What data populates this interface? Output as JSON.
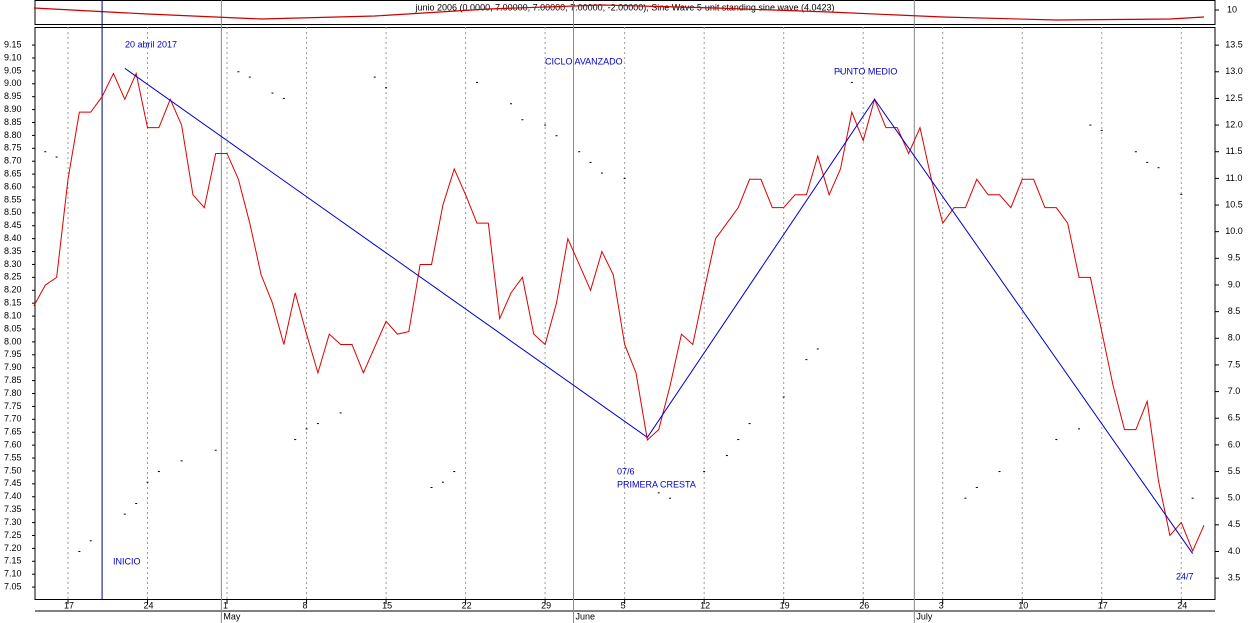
{
  "chart_data": {
    "type": "line",
    "top_panel": {
      "label": "junio 2006 (0.0000, 7.00000, 7.00000, 7.00000, -2.00000), Sine Wave 5-unit standing sine wave (4.0423)",
      "ylim": [
        7.2,
        12
      ],
      "yticks": [
        10
      ],
      "color": "#cc0000",
      "x": [
        0,
        10,
        20,
        30,
        40,
        50,
        60,
        70,
        80,
        90,
        100,
        103
      ],
      "values": [
        10.4,
        9.2,
        8.2,
        8.8,
        10.2,
        11.0,
        10.4,
        9.6,
        8.6,
        8.0,
        8.2,
        8.6
      ]
    },
    "categories": [
      null,
      null,
      null,
      "17",
      null,
      null,
      null,
      null,
      null,
      null,
      "24",
      null,
      null,
      null,
      null,
      null,
      null,
      "1",
      null,
      null,
      null,
      null,
      null,
      null,
      "8",
      null,
      null,
      null,
      null,
      null,
      null,
      "15",
      null,
      null,
      null,
      null,
      null,
      null,
      "22",
      null,
      null,
      null,
      null,
      null,
      null,
      "29",
      null,
      null,
      null,
      null,
      null,
      null,
      "5",
      null,
      null,
      null,
      null,
      null,
      null,
      "12",
      null,
      null,
      null,
      null,
      null,
      null,
      "19",
      null,
      null,
      null,
      null,
      null,
      null,
      "26",
      null,
      null,
      null,
      null,
      null,
      null,
      "3",
      null,
      null,
      null,
      null,
      null,
      null,
      "10",
      null,
      null,
      null,
      null,
      null,
      null,
      "17",
      null,
      null,
      null,
      null,
      null,
      null,
      "24",
      null,
      null
    ],
    "months": [
      {
        "label": "May",
        "index": 17
      },
      {
        "label": "June",
        "index": 48
      },
      {
        "label": "July",
        "index": 78
      }
    ],
    "values": [
      8.14,
      8.22,
      8.25,
      8.63,
      8.89,
      8.89,
      8.95,
      9.04,
      8.94,
      9.04,
      8.83,
      8.83,
      8.94,
      8.84,
      8.57,
      8.52,
      8.73,
      8.73,
      8.63,
      8.46,
      8.26,
      8.15,
      7.99,
      8.19,
      8.03,
      7.88,
      8.03,
      7.99,
      7.99,
      7.88,
      7.98,
      8.08,
      8.03,
      8.04,
      8.3,
      8.3,
      8.53,
      8.67,
      8.57,
      8.46,
      8.46,
      8.09,
      8.19,
      8.25,
      8.03,
      7.99,
      8.15,
      8.4,
      8.3,
      8.2,
      8.35,
      8.26,
      7.99,
      7.88,
      7.62,
      7.66,
      7.83,
      8.03,
      7.99,
      8.2,
      8.4,
      8.46,
      8.52,
      8.63,
      8.63,
      8.52,
      8.52,
      8.57,
      8.57,
      8.72,
      8.57,
      8.67,
      8.89,
      8.78,
      8.94,
      8.83,
      8.83,
      8.73,
      8.83,
      8.63,
      8.46,
      8.52,
      8.52,
      8.63,
      8.57,
      8.57,
      8.52,
      8.63,
      8.63,
      8.52,
      8.52,
      8.46,
      8.25,
      8.25,
      8.04,
      7.83,
      7.66,
      7.66,
      7.77,
      7.46,
      7.25,
      7.3,
      7.19,
      7.29
    ],
    "color": "#dd0000",
    "trend": {
      "x": [
        8,
        54,
        74,
        102
      ],
      "values": [
        9.06,
        7.63,
        8.94,
        7.18
      ],
      "color": "#0000cc"
    },
    "vline_index": 6,
    "dots": {
      "axis": "y2",
      "color": "#000000",
      "x": [
        1,
        2,
        4,
        5,
        8,
        9,
        10,
        11,
        13,
        16,
        18,
        19,
        21,
        22,
        23,
        24,
        25,
        27,
        30,
        31,
        35,
        36,
        37,
        39,
        42,
        43,
        45,
        46,
        48,
        49,
        50,
        52,
        55,
        56,
        59,
        61,
        62,
        63,
        66,
        68,
        69,
        71,
        72,
        82,
        83,
        85,
        90,
        92,
        93,
        94,
        97,
        98,
        99,
        101,
        102
      ],
      "values": [
        11.5,
        11.4,
        4.0,
        4.2,
        4.7,
        4.9,
        5.3,
        5.5,
        5.7,
        5.9,
        13.0,
        12.9,
        12.6,
        12.5,
        6.1,
        6.3,
        6.4,
        6.6,
        12.9,
        12.7,
        5.2,
        5.3,
        5.5,
        12.8,
        12.4,
        12.1,
        12.0,
        11.8,
        11.5,
        11.3,
        11.1,
        11.0,
        5.1,
        5.0,
        5.5,
        5.8,
        6.1,
        6.4,
        6.9,
        7.6,
        7.8,
        13.0,
        12.8,
        5.0,
        5.2,
        5.5,
        6.1,
        6.3,
        12.0,
        11.9,
        11.5,
        11.3,
        11.2,
        10.7,
        5.0
      ]
    },
    "annotations": [
      "20 abril 2017",
      "INICIO",
      "CICLO AVANZADO",
      "07/6",
      "PRIMERA CRESTA",
      "PUNTO MEDIO",
      "24/7"
    ],
    "ylim": [
      7.0,
      9.22
    ],
    "yticks": [
      7.05,
      {
        "value": 7.1,
        "label": "7.10"
      },
      7.15,
      {
        "value": 7.2,
        "label": "7.20"
      },
      7.25,
      {
        "value": 7.3,
        "label": "7.30"
      },
      7.35,
      {
        "value": 7.4,
        "label": "7.40"
      },
      7.45,
      {
        "value": 7.5,
        "label": "7.50"
      },
      7.55,
      {
        "value": 7.6,
        "label": "7.60"
      },
      7.65,
      {
        "value": 7.7,
        "label": "7.70"
      },
      7.75,
      {
        "value": 7.8,
        "label": "7.80"
      },
      7.85,
      {
        "value": 7.9,
        "label": "7.90"
      },
      7.95,
      {
        "value": 8,
        "label": "8.00"
      },
      8.05,
      {
        "value": 8.1,
        "label": "8.10"
      },
      8.15,
      {
        "value": 8.2,
        "label": "8.20"
      },
      8.25,
      {
        "value": 8.3,
        "label": "8.30"
      },
      8.35,
      {
        "value": 8.4,
        "label": "8.40"
      },
      8.45,
      {
        "value": 8.5,
        "label": "8.50"
      },
      8.55,
      {
        "value": 8.6,
        "label": "8.60"
      },
      8.65,
      {
        "value": 8.7,
        "label": "8.70"
      },
      8.75,
      {
        "value": 8.8,
        "label": "8.80"
      },
      8.85,
      {
        "value": 8.9,
        "label": "8.90"
      },
      8.95,
      {
        "value": 9,
        "label": "9.00"
      },
      9.05,
      {
        "value": 9.1,
        "label": "9.10"
      },
      9.15
    ],
    "y2lim": [
      3.09,
      13.84
    ],
    "y2ticks": [
      3.5,
      {
        "value": 4,
        "label": "4.0"
      },
      4.5,
      {
        "value": 5,
        "label": "5.0"
      },
      5.5,
      {
        "value": 6,
        "label": "6.0"
      },
      6.5,
      {
        "value": 7,
        "label": "7.0"
      },
      7.5,
      {
        "value": 8,
        "label": "8.0"
      },
      8.5,
      {
        "value": 9,
        "label": "9.0"
      },
      9.5,
      {
        "value": 10,
        "label": "10.0"
      },
      10.5,
      {
        "value": 11,
        "label": "11.0"
      },
      11.5,
      {
        "value": 12,
        "label": "12.0"
      },
      12.5,
      {
        "value": 13,
        "label": "13.0"
      },
      13.5
    ]
  }
}
